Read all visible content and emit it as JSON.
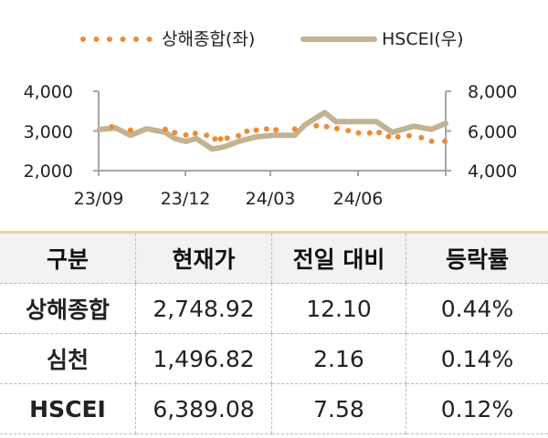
{
  "chart_data": {
    "type": "line",
    "legend_position": "top",
    "x_ticks": [
      "23/09",
      "23/12",
      "24/03",
      "24/06"
    ],
    "x_range": [
      "2023-09-01",
      "2024-09-05"
    ],
    "y_left": {
      "range": [
        2000,
        4000
      ],
      "ticks": [
        "2,000",
        "3,000",
        "4,000"
      ]
    },
    "y_right": {
      "range": [
        4000,
        8000
      ],
      "ticks": [
        "4,000",
        "6,000",
        "8,000"
      ]
    },
    "grid": false,
    "colors": {
      "shanghai": "#ef8a33",
      "hscei": "#c2b393",
      "axis": "#a6a6a6"
    },
    "series": [
      {
        "name": "상해종합(좌)",
        "axis": "left",
        "style": "dotted",
        "x": [
          "2023-09-15",
          "2023-10-05",
          "2023-11-11",
          "2023-11-21",
          "2023-12-03",
          "2023-12-13",
          "2023-12-25",
          "2024-01-03",
          "2024-01-09",
          "2024-01-16",
          "2024-01-28",
          "2024-02-06",
          "2024-02-16",
          "2024-02-27",
          "2024-03-08",
          "2024-03-28",
          "2024-04-20",
          "2024-05-01",
          "2024-05-12",
          "2024-05-24",
          "2024-06-04",
          "2024-06-16",
          "2024-06-26",
          "2024-07-06",
          "2024-07-16",
          "2024-07-28",
          "2024-08-10",
          "2024-08-21",
          "2024-09-04"
        ],
        "values": [
          3107,
          3020,
          3040,
          2960,
          2900,
          2940,
          2890,
          2800,
          2800,
          2820,
          2880,
          2990,
          3020,
          3050,
          3030,
          3050,
          3130,
          3110,
          3060,
          3010,
          2950,
          2950,
          2960,
          2860,
          2850,
          2880,
          2830,
          2740,
          2740
        ]
      },
      {
        "name": "HSCEI(우)",
        "axis": "right",
        "style": "solid",
        "x": [
          "2023-09-02",
          "2023-09-19",
          "2023-10-05",
          "2023-10-22",
          "2023-11-11",
          "2023-11-21",
          "2023-12-03",
          "2023-12-14",
          "2023-12-31",
          "2024-01-13",
          "2024-01-28",
          "2024-02-16",
          "2024-03-05",
          "2024-03-28",
          "2024-04-08",
          "2024-04-29",
          "2024-05-11",
          "2024-05-30",
          "2024-06-23",
          "2024-07-10",
          "2024-08-02",
          "2024-08-21",
          "2024-09-05"
        ],
        "values": [
          6083,
          6150,
          5780,
          6110,
          5930,
          5620,
          5470,
          5620,
          5090,
          5200,
          5470,
          5700,
          5780,
          5780,
          6310,
          6930,
          6470,
          6470,
          6470,
          5930,
          6240,
          6080,
          6390
        ]
      }
    ]
  },
  "legend": {
    "shanghai": "상해종합(좌)",
    "hscei": "HSCEI(우)"
  },
  "table": {
    "headers": [
      "구분",
      "현재가",
      "전일 대비",
      "등락률"
    ],
    "rows": [
      [
        "상해종합",
        "2,748.92",
        "12.10",
        "0.44%"
      ],
      [
        "심천",
        "1,496.82",
        "2.16",
        "0.14%"
      ],
      [
        "HSCEI",
        "6,389.08",
        "7.58",
        "0.12%"
      ]
    ]
  }
}
